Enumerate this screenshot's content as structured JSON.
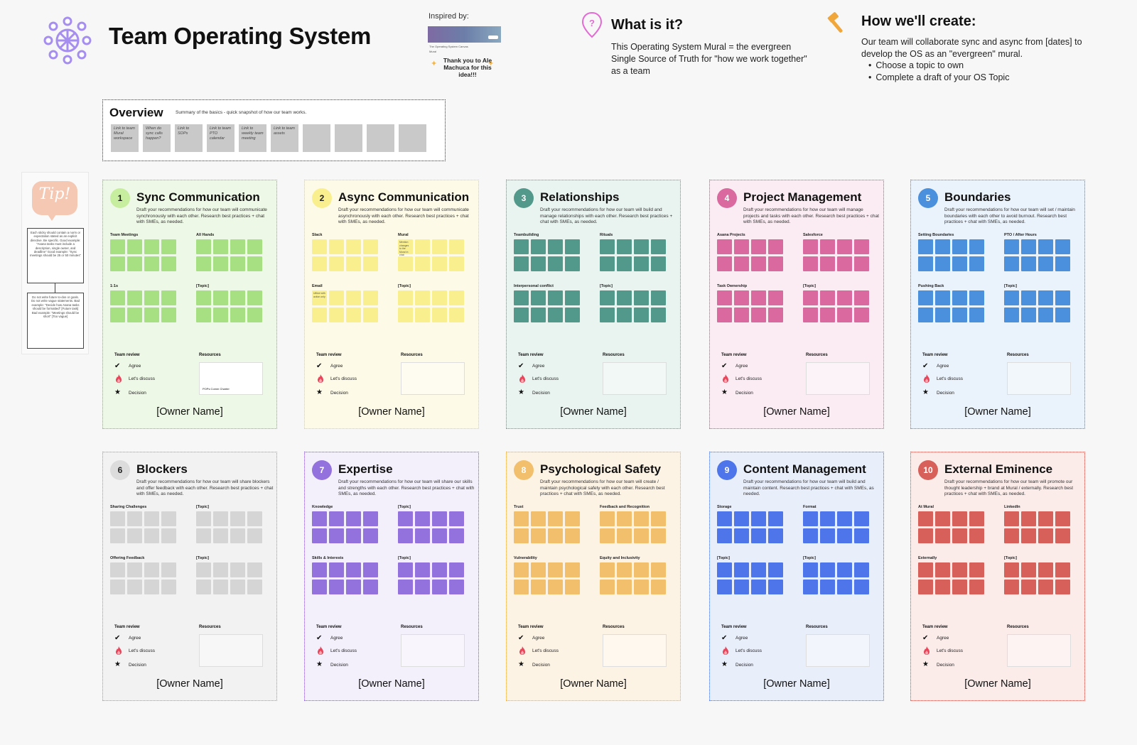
{
  "header": {
    "title": "Team Operating System",
    "inspired_label": "Inspired by:",
    "inspired_card_caption": "The Operating System Canvas",
    "inspired_card_sub": "Mural",
    "inspired_card_chip": "open",
    "inspired_thanks": "Thank you to Ale Machuca for this idea!!!",
    "what_title": "What is it?",
    "what_body": "This Operating System Mural = the evergreen Single Source of Truth for \"how we work together\" as a team",
    "how_title": "How we'll create:",
    "how_body": "Our team will collaborate sync and async from [dates] to develop the OS as an \"evergreen\" mural.",
    "how_bullets": [
      "Choose a topic to own",
      "Complete a draft of your OS Topic"
    ]
  },
  "overview": {
    "title": "Overview",
    "subtitle": "Summary of the basics - quick snapshot of how our team works.",
    "tiles": [
      "Link to team Mural workspace",
      "When do sync calls happen?",
      "Link to SOPs",
      "Link to team PTO calendar",
      "Link to weekly team meeting",
      "Link to team assets",
      "",
      "",
      "",
      ""
    ]
  },
  "tip": {
    "badge": "Tip!",
    "card1": "Each sticky should contain a norm or expectation stated as an explicit directive. Be specific. Good example: \"Asana tasks must include a description, single owner, and deadline\" Good example: \"Sync meetings should be 25 or 50 minutes\"",
    "card2": "Do not write future to-dos or goals. Do not write vague statements. Bad example: \"Decide how Asana tasks should be formatted\" [Future task] Bad example: \"Meetings should be short\" [Too vague]"
  },
  "common": {
    "team_review": "Team review",
    "resources": "Resources",
    "agree": "Agree",
    "discuss": "Let's discuss",
    "decision": "Decision",
    "owner": "[Owner Name]"
  },
  "cards": [
    {
      "num": "1",
      "title": "Sync Communication",
      "desc": "Draft your recommendations for how our team will communicate synchronously with each other. Research best practices + chat with SMEs, as needed.",
      "groups": [
        "Team Meetings",
        "All Hands",
        "1:1s",
        "[Topic]"
      ],
      "resource_label": "POPs Comm Charter",
      "colors": {
        "bg": "#eef8e6",
        "border": "#6fbf55",
        "note": "#a6e083",
        "num": "#c6ee9e"
      }
    },
    {
      "num": "2",
      "title": "Async Communication",
      "desc": "Draft your recommendations for how our team will communicate asynchronously with each other. Research best practices + chat with SMEs, as needed.",
      "groups": [
        "Slack",
        "Mural",
        "Email",
        "[Topic]"
      ],
      "sticky_notes": [
        "",
        "Mention changes to the Mural in chat",
        "Utilize with action only",
        ""
      ],
      "colors": {
        "bg": "#fdfae7",
        "border": "#e9cf5f",
        "note": "#f9ef8e",
        "num": "#f9ef8e"
      }
    },
    {
      "num": "3",
      "title": "Relationships",
      "desc": "Draft your recommendations for how our team will build and manage relationships with each other. Research best practices + chat with SMEs, as needed.",
      "groups": [
        "Teambuilding",
        "Rituals",
        "Interpersonal conflict",
        "[Topic]"
      ],
      "colors": {
        "bg": "#e9f4f1",
        "border": "#4f9e8d",
        "note": "#53998b",
        "num": "#53998b"
      }
    },
    {
      "num": "4",
      "title": "Project Management",
      "desc": "Draft your recommendations for how our team will manage projects and tasks with each other. Research best practices + chat with SMEs, as needed.",
      "groups": [
        "Asana Projects",
        "Salesforce",
        "Task Ownership",
        "[Topic]"
      ],
      "colors": {
        "bg": "#fbecf3",
        "border": "#c94b87",
        "note": "#d9699f",
        "num": "#d9699f"
      }
    },
    {
      "num": "5",
      "title": "Boundaries",
      "desc": "Draft your recommendations for how our team will set / maintain boundaries with each other to avoid burnout. Research best practices + chat with SMEs, as needed.",
      "groups": [
        "Setting Boundaries",
        "PTO / After Hours",
        "Pushing Back",
        "[Topic]"
      ],
      "colors": {
        "bg": "#eaf2fb",
        "border": "#3b84d6",
        "note": "#4a90dd",
        "num": "#4a90dd"
      }
    },
    {
      "num": "6",
      "title": "Blockers",
      "desc": "Draft your recommendations for how our team will share blockers and offer feedback with each other. Research best practices + chat with SMEs, as needed.",
      "groups": [
        "Sharing Challenges",
        "[Topic]",
        "Offering Feedback",
        "[Topic]"
      ],
      "colors": {
        "bg": "#f2f2f2",
        "border": "#9a9a9a",
        "note": "#d5d5d5",
        "num": "#dcdcdc"
      }
    },
    {
      "num": "7",
      "title": "Expertise",
      "desc": "Draft your recommendations for how our team will share our skills and strengths with each other. Research best practices + chat with SMEs, as needed.",
      "groups": [
        "Knowledge",
        "[Topic]",
        "Skills & Interests",
        "[Topic]"
      ],
      "colors": {
        "bg": "#f3effb",
        "border": "#7b55cf",
        "note": "#9472dd",
        "num": "#9472dd"
      }
    },
    {
      "num": "8",
      "title": "Psychological Safety",
      "desc": "Draft your recommendations for how our team will create / maintain psychological safety with each other. Research best practices + chat with SMEs, as needed.",
      "groups": [
        "Trust",
        "Feedback and Recognition",
        "Vulnerability",
        "Equity and Inclusivity"
      ],
      "colors": {
        "bg": "#fdf3e5",
        "border": "#e8a744",
        "note": "#f2c06c",
        "num": "#f2c06c"
      }
    },
    {
      "num": "9",
      "title": "Content Management",
      "desc": "Draft your recommendations for how our team will build and maintain content. Research best practices + chat with SMEs, as needed.",
      "groups": [
        "Storage",
        "Format",
        "[Topic]",
        "[Topic]"
      ],
      "colors": {
        "bg": "#e9eefb",
        "border": "#4468e0",
        "note": "#4f75ea",
        "num": "#4f75ea"
      }
    },
    {
      "num": "10",
      "title": "External Eminence",
      "desc": "Draft your recommendations for how our team will promote our thought leadership + brand at Mural / externally. Research best practices + chat with SMEs, as needed.",
      "groups": [
        "At Mural",
        "LinkedIn",
        "Externally",
        "[Topic]"
      ],
      "colors": {
        "bg": "#fbecea",
        "border": "#cc4b43",
        "note": "#d8605a",
        "num": "#d8605a"
      }
    }
  ]
}
